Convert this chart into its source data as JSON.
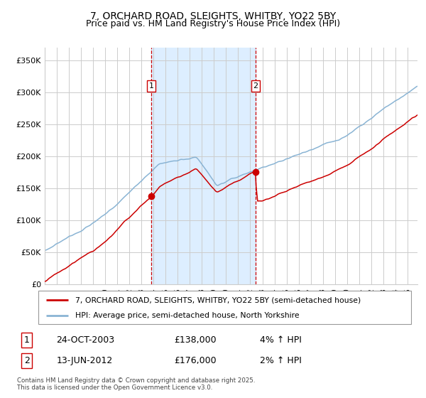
{
  "title1": "7, ORCHARD ROAD, SLEIGHTS, WHITBY, YO22 5BY",
  "title2": "Price paid vs. HM Land Registry's House Price Index (HPI)",
  "ylim": [
    0,
    370000
  ],
  "yticks": [
    0,
    50000,
    100000,
    150000,
    200000,
    250000,
    300000,
    350000
  ],
  "ytick_labels": [
    "£0",
    "£50K",
    "£100K",
    "£150K",
    "£200K",
    "£250K",
    "£300K",
    "£350K"
  ],
  "xlim_start": 1995.0,
  "xlim_end": 2025.83,
  "red_color": "#cc0000",
  "blue_color": "#8ab4d4",
  "shading_color": "#ddeeff",
  "grid_color": "#cccccc",
  "background_color": "#ffffff",
  "marker1_x": 2003.82,
  "marker1_y": 138000,
  "marker1_label": "1",
  "marker1_date": "24-OCT-2003",
  "marker1_price": "£138,000",
  "marker1_hpi": "4% ↑ HPI",
  "marker2_x": 2012.45,
  "marker2_y": 176000,
  "marker2_label": "2",
  "marker2_date": "13-JUN-2012",
  "marker2_price": "£176,000",
  "marker2_hpi": "2% ↑ HPI",
  "legend_line1": "7, ORCHARD ROAD, SLEIGHTS, WHITBY, YO22 5BY (semi-detached house)",
  "legend_line2": "HPI: Average price, semi-detached house, North Yorkshire",
  "footer": "Contains HM Land Registry data © Crown copyright and database right 2025.\nThis data is licensed under the Open Government Licence v3.0.",
  "title_fontsize": 10,
  "subtitle_fontsize": 9
}
